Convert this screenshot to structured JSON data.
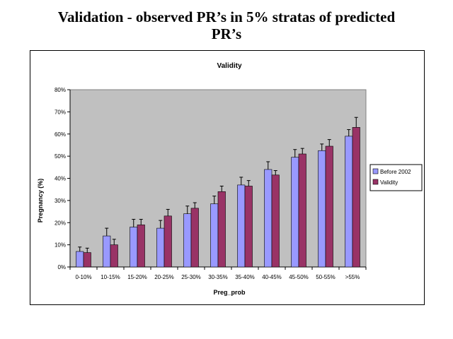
{
  "slide": {
    "title_line1": "Validation - observed PR’s in 5% stratas of predicted",
    "title_line2": "PR’s"
  },
  "chart_data": {
    "type": "bar",
    "title": "Validity",
    "xlabel": "Preg_prob",
    "ylabel": "Pregnancy (%)",
    "ylim": [
      0,
      80
    ],
    "yticks": [
      "0%",
      "10%",
      "20%",
      "30%",
      "40%",
      "50%",
      "60%",
      "70%",
      "80%"
    ],
    "grid": false,
    "legend_position": "right",
    "plot_background": "#c0c0c0",
    "categories": [
      "0-10%",
      "10-15%",
      "15-20%",
      "20-25%",
      "25-30%",
      "30-35%",
      "35-40%",
      "40-45%",
      "45-50%",
      "50-55%",
      ">55%"
    ],
    "series": [
      {
        "name": "Before 2002",
        "color": "#9999ff",
        "values": [
          7,
          14,
          18,
          17.5,
          24,
          28.5,
          37,
          44,
          49.5,
          52.5,
          59
        ],
        "errors": [
          2,
          3.5,
          3.5,
          3.5,
          3.5,
          3.5,
          3.5,
          3.5,
          3.5,
          3,
          3
        ]
      },
      {
        "name": "Validity",
        "color": "#993366",
        "values": [
          6.5,
          10,
          19,
          23,
          26.5,
          34,
          36.5,
          41.5,
          51,
          54.5,
          63
        ],
        "errors": [
          2,
          2.5,
          2.5,
          3,
          2.5,
          2.5,
          2.5,
          2,
          2.5,
          3,
          4.5
        ]
      }
    ]
  }
}
